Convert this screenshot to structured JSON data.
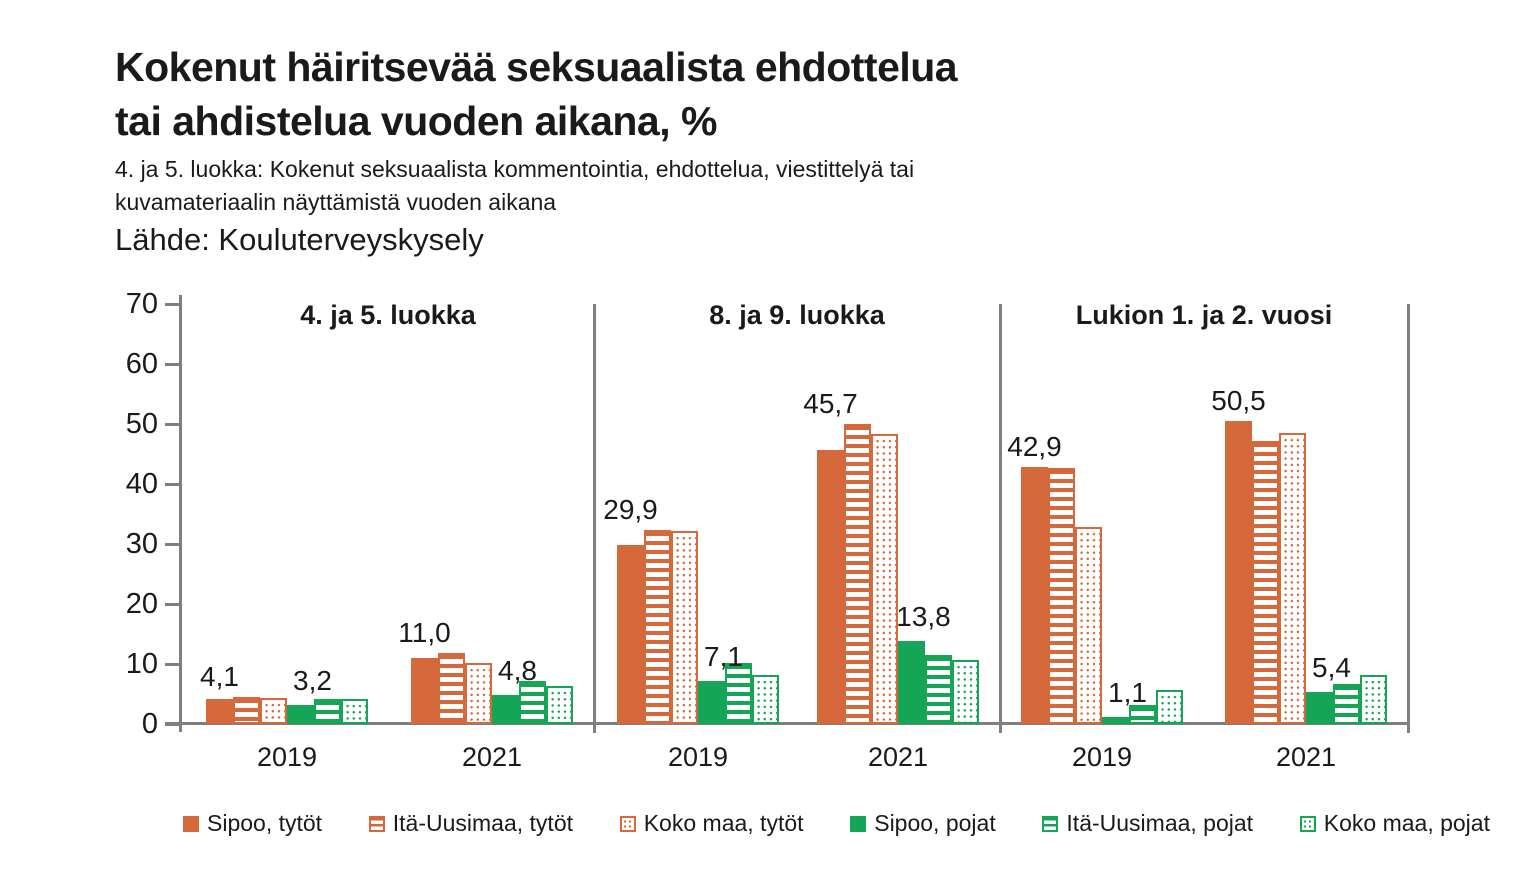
{
  "header": {
    "title": "Kokenut häiritsevää seksuaalista ehdottelua\ntai ahdistelua vuoden aikana, %",
    "subtitle": "4. ja 5. luokka: Kokenut seksuaalista kommentointia, ehdottelua, viestittelyä tai\nkuvamateriaalin näyttämistä vuoden aikana",
    "source": "Lähde: Kouluterveyskysely"
  },
  "colors": {
    "orange": "#D5693B",
    "green": "#14A556",
    "axis": "#7F7F7F",
    "text": "#1A1A1A"
  },
  "chart_data": {
    "type": "bar",
    "title": "Kokenut häiritsevää seksuaalista ehdottelua tai ahdistelua vuoden aikana, %",
    "ylabel": "",
    "xlabel": "",
    "ylim": [
      0,
      70
    ],
    "yticks": [
      0,
      10,
      20,
      30,
      40,
      50,
      60,
      70
    ],
    "grid": false,
    "legend_position": "bottom",
    "series_names": [
      "Sipoo, tytöt",
      "Itä-Uusimaa, tytöt",
      "Koko maa, tytöt",
      "Sipoo, pojat",
      "Itä-Uusimaa, pojat",
      "Koko maa, pojat"
    ],
    "panels": [
      {
        "title": "4. ja 5. luokka",
        "groups": [
          {
            "x": "2019",
            "values": [
              4.1,
              4.5,
              4.4,
              3.2,
              4.1,
              4.2
            ],
            "labels": {
              "girls": "4,1",
              "boys": "3,2"
            }
          },
          {
            "x": "2021",
            "values": [
              11.0,
              11.9,
              10.2,
              4.8,
              7.2,
              6.3
            ],
            "labels": {
              "girls": "11,0",
              "boys": "4,8"
            }
          }
        ]
      },
      {
        "title": "8. ja 9. luokka",
        "groups": [
          {
            "x": "2019",
            "values": [
              29.9,
              32.4,
              32.2,
              7.1,
              10.1,
              8.1
            ],
            "labels": {
              "girls": "29,9",
              "boys": "7,1"
            }
          },
          {
            "x": "2021",
            "values": [
              45.7,
              50.0,
              48.3,
              13.8,
              11.5,
              10.6
            ],
            "labels": {
              "girls": "45,7",
              "boys": "13,8"
            }
          }
        ]
      },
      {
        "title": "Lukion 1. ja 2. vuosi",
        "groups": [
          {
            "x": "2019",
            "values": [
              42.9,
              42.6,
              32.9,
              1.1,
              3.1,
              5.7
            ],
            "labels": {
              "girls": "42,9",
              "boys": "1,1"
            }
          },
          {
            "x": "2021",
            "values": [
              50.5,
              47.2,
              48.5,
              5.4,
              6.6,
              8.1
            ],
            "labels": {
              "girls": "50,5",
              "boys": "5,4"
            }
          }
        ]
      }
    ],
    "legend": [
      {
        "label": "Sipoo, tytöt",
        "style": "solid-orange"
      },
      {
        "label": "Itä-Uusimaa, tytöt",
        "style": "striped-orange"
      },
      {
        "label": "Koko maa, tytöt",
        "style": "dotted-orange"
      },
      {
        "label": "Sipoo, pojat",
        "style": "solid-green"
      },
      {
        "label": "Itä-Uusimaa, pojat",
        "style": "striped-green"
      },
      {
        "label": "Koko maa, pojat",
        "style": "dotted-green"
      }
    ]
  }
}
